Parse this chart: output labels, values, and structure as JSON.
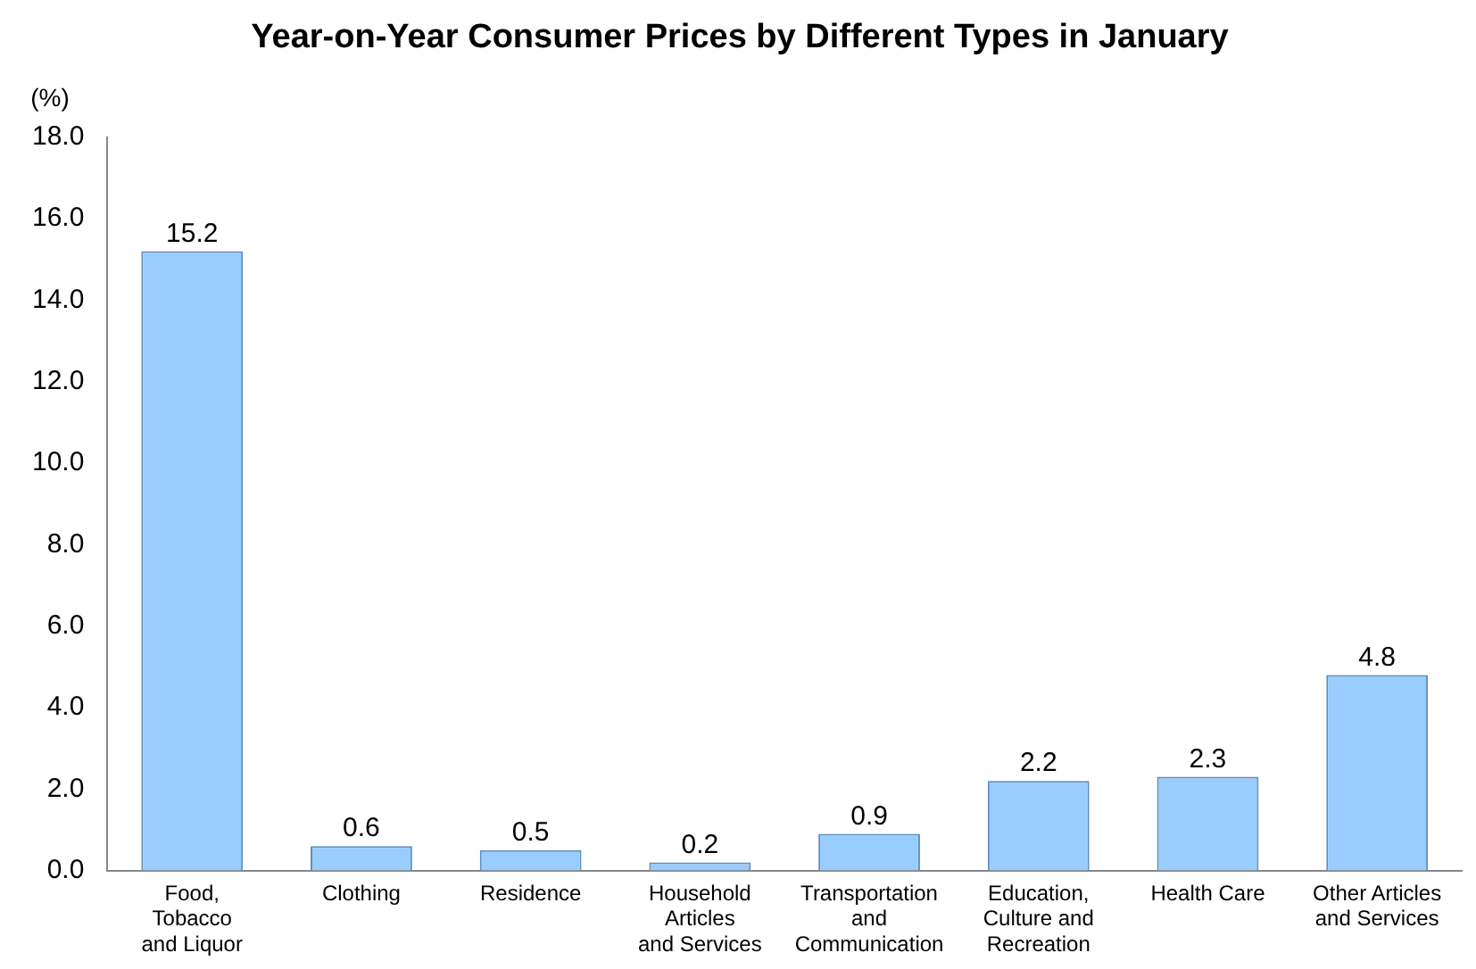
{
  "chart_data": {
    "type": "bar",
    "title": "Year-on-Year Consumer Prices by Different Types in January",
    "ylabel": "(%)",
    "categories": [
      "Food,\nTobacco\nand Liquor",
      "Clothing",
      "Residence",
      "Household\nArticles\nand Services",
      "Transportation\nand\nCommunication",
      "Education,\nCulture and\nRecreation",
      "Health Care",
      "Other Articles\nand Services"
    ],
    "values": [
      15.2,
      0.6,
      0.5,
      0.2,
      0.9,
      2.2,
      2.3,
      4.8
    ],
    "color": "#99ccff",
    "ylim": [
      0,
      18
    ],
    "yticks": [
      {
        "value": 0,
        "label": "0.0"
      },
      {
        "value": 2,
        "label": "2.0"
      },
      {
        "value": 4,
        "label": "4.0"
      },
      {
        "value": 6,
        "label": "6.0"
      },
      {
        "value": 8,
        "label": "8.0"
      },
      {
        "value": 10,
        "label": "10.0"
      },
      {
        "value": 12,
        "label": "12.0"
      },
      {
        "value": 14,
        "label": "14.0"
      },
      {
        "value": 16,
        "label": "16.0"
      },
      {
        "value": 18,
        "label": "18.0"
      }
    ],
    "grid": false,
    "legend": false,
    "data_labels": true
  }
}
